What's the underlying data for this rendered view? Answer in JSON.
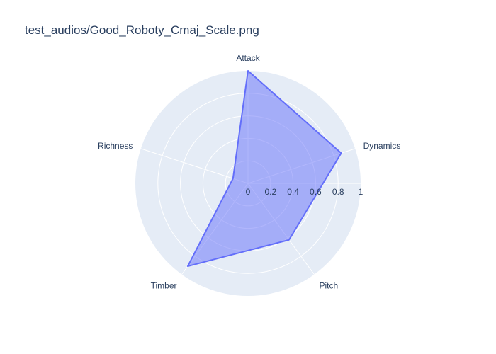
{
  "chart_data": {
    "type": "radar",
    "title": "test_audios/Good_Roboty_Cmaj_Scale.png",
    "axes": [
      "Attack",
      "Dynamics",
      "Pitch",
      "Timber",
      "Richness"
    ],
    "series": [
      {
        "values": [
          1.0,
          0.87,
          0.62,
          0.91,
          0.14
        ]
      }
    ],
    "radial_range": [
      0,
      1
    ],
    "radial_ticks": [
      "0",
      "0.2",
      "0.4",
      "0.6",
      "0.8",
      "1"
    ],
    "grid": true,
    "legend": "none"
  },
  "colors": {
    "polar_bg": "#e5ecf6",
    "grid": "#ffffff",
    "series_line": "#636efa",
    "series_fill": "#636efa",
    "text": "#2a3f5f"
  }
}
